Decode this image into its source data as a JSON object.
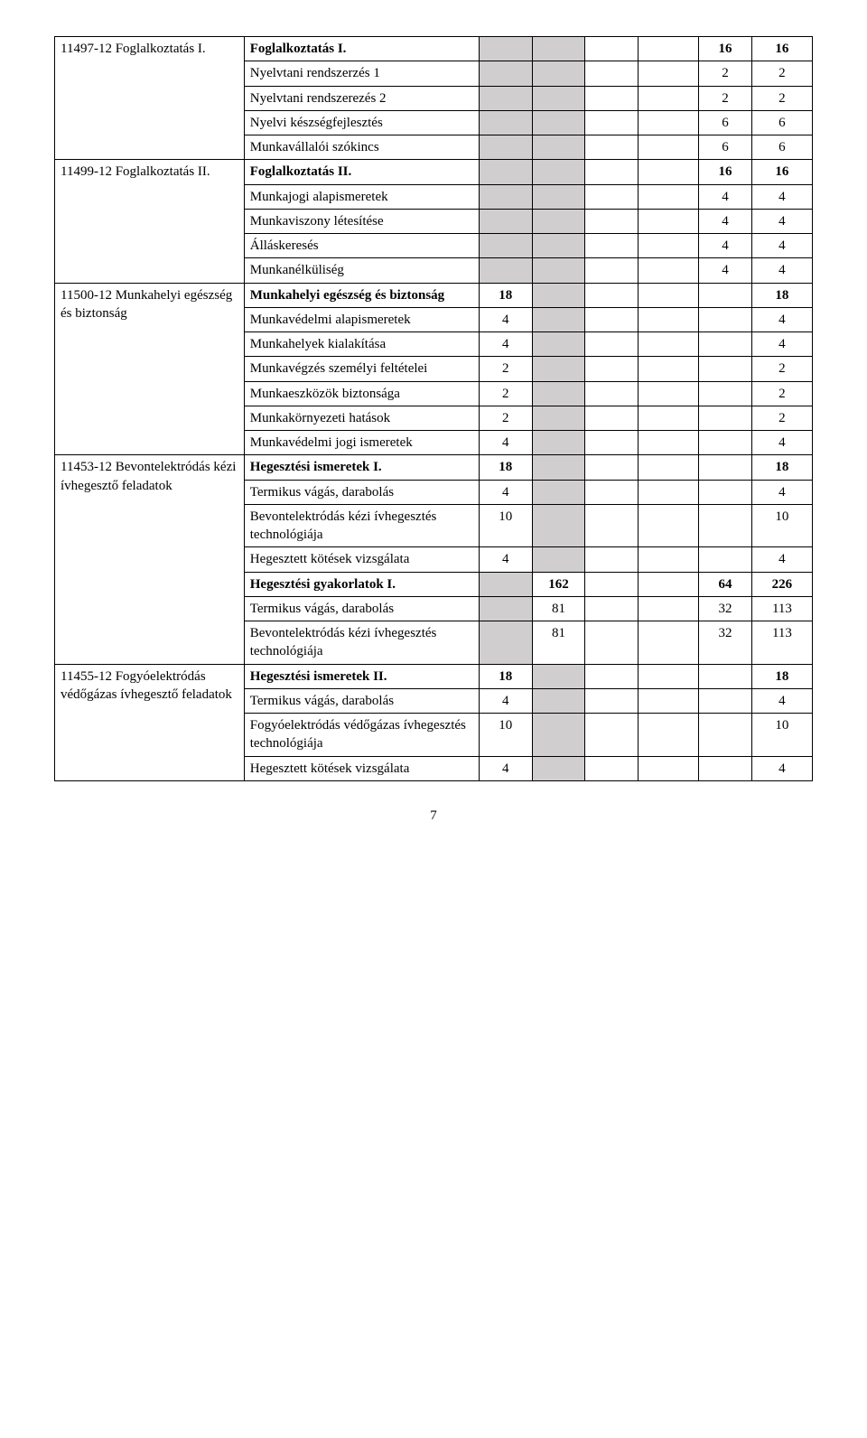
{
  "colors": {
    "shade": "#d0cece",
    "border": "#000000",
    "bg": "#ffffff"
  },
  "page_number": "7",
  "sections": {
    "fog1": {
      "left": "11497-12 Foglalkoztatás I.",
      "r1": {
        "label": "Foglalkoztatás I.",
        "v5": "16",
        "v6": "16"
      },
      "r2": {
        "label": "Nyelvtani rendszerzés 1",
        "v5": "2",
        "v6": "2"
      },
      "r3": {
        "label": "Nyelvtani rendszerezés 2",
        "v5": "2",
        "v6": "2"
      },
      "r4": {
        "label": "Nyelvi készségfejlesztés",
        "v5": "6",
        "v6": "6"
      },
      "r5": {
        "label": "Munkavállalói szókincs",
        "v5": "6",
        "v6": "6"
      }
    },
    "fog2": {
      "left": "11499-12 Foglalkoztatás II.",
      "r1": {
        "label": "Foglalkoztatás II.",
        "v5": "16",
        "v6": "16"
      },
      "r2": {
        "label": "Munkajogi alapismeretek",
        "v5": "4",
        "v6": "4"
      },
      "r3": {
        "label": "Munkaviszony létesítése",
        "v5": "4",
        "v6": "4"
      },
      "r4": {
        "label": "Álláskeresés",
        "v5": "4",
        "v6": "4"
      },
      "r5": {
        "label": "Munkanélküliség",
        "v5": "4",
        "v6": "4"
      }
    },
    "munk": {
      "left": "11500-12 Munkahelyi egészség és biztonság",
      "r1": {
        "label": "Munkahelyi egészség és biztonság",
        "v1": "18",
        "v6": "18"
      },
      "r2": {
        "label": "Munkavédelmi alapismeretek",
        "v1": "4",
        "v6": "4"
      },
      "r3": {
        "label": "Munkahelyek kialakítása",
        "v1": "4",
        "v6": "4"
      },
      "r4": {
        "label": "Munkavégzés személyi feltételei",
        "v1": "2",
        "v6": "2"
      },
      "r5": {
        "label": "Munkaeszközök biztonsága",
        "v1": "2",
        "v6": "2"
      },
      "r6": {
        "label": "Munkakörnyezeti hatások",
        "v1": "2",
        "v6": "2"
      },
      "r7": {
        "label": "Munkavédelmi jogi ismeretek",
        "v1": "4",
        "v6": "4"
      }
    },
    "bev": {
      "left": "11453-12 Bevontelektródás kézi ívhegesztő feladatok",
      "r1": {
        "label": "Hegesztési ismeretek I.",
        "v1": "18",
        "v6": "18"
      },
      "r2": {
        "label": "Termikus vágás, darabolás",
        "v1": "4",
        "v6": "4"
      },
      "r3": {
        "label": "Bevontelektródás kézi ívhegesztés technológiája",
        "v1": "10",
        "v6": "10"
      },
      "r4": {
        "label": "Hegesztett kötések vizsgálata",
        "v1": "4",
        "v6": "4"
      },
      "r5": {
        "label": "Hegesztési gyakorlatok I.",
        "v2": "162",
        "v5": "64",
        "v6": "226"
      },
      "r6": {
        "label": "Termikus vágás, darabolás",
        "v2": "81",
        "v5": "32",
        "v6": "113"
      },
      "r7": {
        "label": "Bevontelektródás kézi ívhegesztés technológiája",
        "v2": "81",
        "v5": "32",
        "v6": "113"
      }
    },
    "fogy": {
      "left": "11455-12 Fogyóelektródás védőgázas ívhegesztő feladatok",
      "r1": {
        "label": "Hegesztési ismeretek II.",
        "v1": "18",
        "v6": "18"
      },
      "r2": {
        "label": "Termikus vágás, darabolás",
        "v1": "4",
        "v6": "4"
      },
      "r3": {
        "label": "Fogyóelektródás védőgázas ívhegesztés technológiája",
        "v1": "10",
        "v6": "10"
      },
      "r4": {
        "label": "Hegesztett kötések vizsgálata",
        "v1": "4",
        "v6": "4"
      }
    }
  }
}
